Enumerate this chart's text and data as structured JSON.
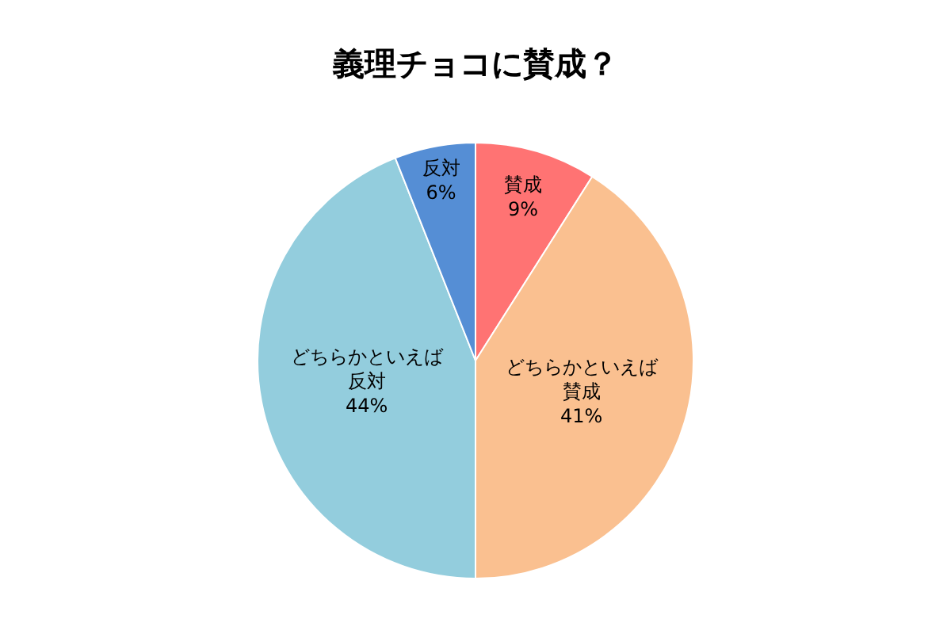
{
  "chart_data": {
    "type": "pie",
    "title": "義理チョコに賛成？",
    "categories": [
      "賛成",
      "どちらかといえば賛成",
      "どちらかといえば反対",
      "反対"
    ],
    "values": [
      9,
      41,
      44,
      6
    ],
    "value_labels": [
      "9%",
      "41%",
      "44%",
      "6%"
    ],
    "colors": [
      "#ff7373",
      "#fac090",
      "#93cddd",
      "#558ed5"
    ],
    "legend": false
  }
}
